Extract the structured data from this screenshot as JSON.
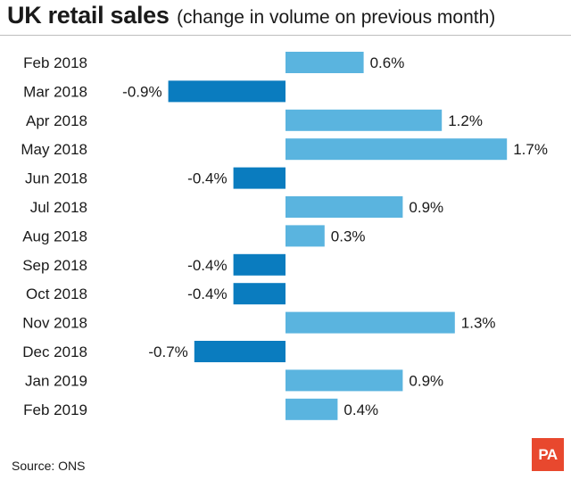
{
  "header": {
    "title": "UK retail sales",
    "subtitle": "(change in volume on previous month)"
  },
  "footer": {
    "source": "Source: ONS",
    "logo_text": "PA"
  },
  "colors": {
    "positive": "#5ab4df",
    "negative": "#0a7cbf"
  },
  "chart_data": {
    "type": "bar",
    "orientation": "horizontal",
    "title": "UK retail sales",
    "subtitle": "(change in volume on previous month)",
    "unit": "%",
    "categories": [
      "Feb 2018",
      "Mar 2018",
      "Apr 2018",
      "May 2018",
      "Jun 2018",
      "Jul 2018",
      "Aug 2018",
      "Sep 2018",
      "Oct 2018",
      "Nov 2018",
      "Dec 2018",
      "Jan 2019",
      "Feb 2019"
    ],
    "values": [
      0.6,
      -0.9,
      1.2,
      1.7,
      -0.4,
      0.9,
      0.3,
      -0.4,
      -0.4,
      1.3,
      -0.7,
      0.9,
      0.4
    ],
    "labels": [
      "0.6%",
      "-0.9%",
      "1.2%",
      "1.7%",
      "-0.4%",
      "0.9%",
      "0.3%",
      "-0.4%",
      "-0.4%",
      "1.3%",
      "-0.7%",
      "0.9%",
      "0.4%"
    ],
    "xlim": [
      -1.2,
      1.9
    ],
    "grid": false,
    "legend": "none"
  }
}
